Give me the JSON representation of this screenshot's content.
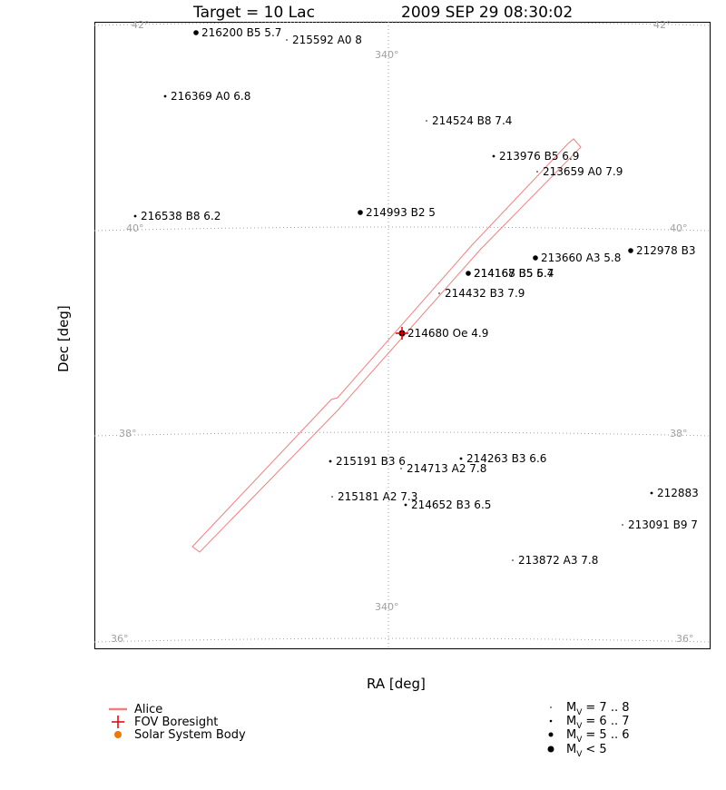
{
  "title": {
    "target": "Target = 10 Lac",
    "datetime": "2009 SEP 29 08:30:02"
  },
  "chart_data": {
    "type": "scatter",
    "xlabel": "RA [deg]",
    "ylabel": "Dec [deg]",
    "grid": true,
    "ra_grid_labels": [
      "340°",
      "340°"
    ],
    "dec_grid_labels": [
      {
        "text": "42°",
        "left": "42°",
        "right": "42°"
      },
      {
        "text": "40°",
        "left": "40°",
        "right": "40°"
      },
      {
        "text": "38°",
        "left": "38°",
        "right": "38°"
      },
      {
        "text": "36°",
        "left": "36°",
        "right": "36°"
      }
    ],
    "colors": {
      "alice": "#f08080",
      "boresight": "#e00000",
      "solar": "#f07800",
      "grid": "#a0a0a0"
    },
    "boresight": {
      "id": "214680",
      "label": "214680 Oe 4.9"
    },
    "stars": [
      {
        "id": "216200",
        "type": "B5",
        "mag": 5.7,
        "label": "216200 B5 5.7"
      },
      {
        "id": "215592",
        "type": "A0",
        "mag": 8,
        "label": "215592 A0 8"
      },
      {
        "id": "216369",
        "type": "A0",
        "mag": 6.8,
        "label": "216369 A0 6.8"
      },
      {
        "id": "214524",
        "type": "B8",
        "mag": 7.4,
        "label": "214524 B8 7.4"
      },
      {
        "id": "213976",
        "type": "B5",
        "mag": 6.9,
        "label": "213976 B5 6.9"
      },
      {
        "id": "213659",
        "type": "A0",
        "mag": 7.9,
        "label": "213659 A0 7.9"
      },
      {
        "id": "216538",
        "type": "B8",
        "mag": 6.2,
        "label": "216538 B8 6.2"
      },
      {
        "id": "214993",
        "type": "B2",
        "mag": 5,
        "label": "214993 B2 5"
      },
      {
        "id": "213660",
        "type": "A3",
        "mag": 5.8,
        "label": "213660 A3 5.8"
      },
      {
        "id": "212978",
        "type": "B3",
        "mag": 5.5,
        "label": "212978 B3"
      },
      {
        "id": "214168",
        "type": "B5",
        "mag": 5.7,
        "label": "214168 B5 5.7"
      },
      {
        "id": "214167",
        "type": "B5",
        "mag": 6.4,
        "label": "214167 B5 6.4"
      },
      {
        "id": "214432",
        "type": "B3",
        "mag": 7.9,
        "label": "214432 B3 7.9"
      },
      {
        "id": "214680",
        "type": "Oe",
        "mag": 4.9,
        "label": "214680 Oe 4.9"
      },
      {
        "id": "215191",
        "type": "B3",
        "mag": 6,
        "label": "215191 B3 6"
      },
      {
        "id": "214263",
        "type": "B3",
        "mag": 6.6,
        "label": "214263 B3 6.6"
      },
      {
        "id": "214713",
        "type": "A2",
        "mag": 7.8,
        "label": "214713 A2 7.8"
      },
      {
        "id": "215181",
        "type": "A2",
        "mag": 7.3,
        "label": "215181 A2 7.3"
      },
      {
        "id": "214652",
        "type": "B3",
        "mag": 6.5,
        "label": "214652 B3 6.5"
      },
      {
        "id": "212883",
        "type": "",
        "mag": 6.2,
        "label": "212883"
      },
      {
        "id": "213091",
        "type": "B9",
        "mag": 7,
        "label": "213091 B9 7"
      },
      {
        "id": "213872",
        "type": "A3",
        "mag": 7.8,
        "label": "213872 A3 7.8"
      }
    ]
  },
  "legend": {
    "alice": "Alice",
    "boresight": "FOV Boresight",
    "solar": "Solar System Body",
    "mag_prefix": "M",
    "mag_sub": "V",
    "mag_ranges": [
      "= 7 .. 8",
      "= 6 .. 7",
      "= 5 .. 6",
      "< 5"
    ]
  }
}
